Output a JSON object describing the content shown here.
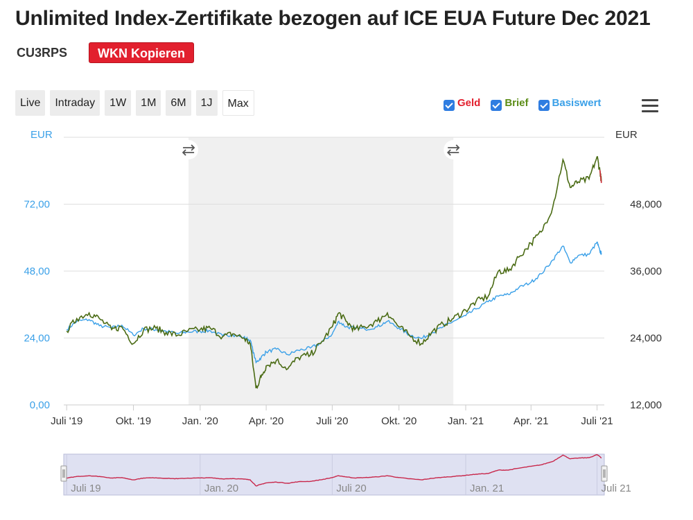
{
  "header": {
    "title": "Unlimited Index-Zertifikate bezogen auf ICE EUA Future Dec 2021",
    "symbol": "CU3RPS",
    "copy_button": "WKN Kopieren"
  },
  "ranges": [
    "Live",
    "Intraday",
    "1W",
    "1M",
    "6M",
    "1J",
    "Max"
  ],
  "active_range": "Max",
  "legend": [
    {
      "label": "Geld",
      "color": "#e2202e",
      "checked": true
    },
    {
      "label": "Brief",
      "color": "#5b8c16",
      "checked": true
    },
    {
      "label": "Basiswert",
      "color": "#3aa0e8",
      "checked": true
    }
  ],
  "colors": {
    "geld": "#d22a3a",
    "brief": "#4a6b14",
    "basiswert": "#3aa0e8",
    "navigator": "#c8264a",
    "shade": "#f0f0f0"
  },
  "icons": {
    "swap": "swap-arrows-icon",
    "menu": "hamburger-menu-icon"
  },
  "chart_data": {
    "type": "line",
    "x_tick_labels": [
      "Juli '19",
      "Okt. '19",
      "Jan. '20",
      "Apr. '20",
      "Juli '20",
      "Okt. '20",
      "Jan. '21",
      "Apr. '21",
      "Juli '21"
    ],
    "left_axis": {
      "label": "EUR",
      "ticks": [
        "0,00",
        "24,00",
        "48,00",
        "72,00"
      ],
      "range": [
        0,
        96
      ]
    },
    "right_axis": {
      "label": "EUR",
      "ticks": [
        "12,000",
        "24,000",
        "36,000",
        "48,000"
      ],
      "range": [
        12000,
        60000
      ]
    },
    "shaded_period": [
      "2019-12-16",
      "2020-12-15"
    ],
    "series": [
      {
        "name": "Brief",
        "axis": "left",
        "points": [
          [
            "2019-07-01",
            26.5
          ],
          [
            "2019-07-15",
            31
          ],
          [
            "2019-08-01",
            33
          ],
          [
            "2019-08-15",
            31
          ],
          [
            "2019-09-01",
            27
          ],
          [
            "2019-09-15",
            28
          ],
          [
            "2019-10-01",
            22
          ],
          [
            "2019-10-15",
            27
          ],
          [
            "2019-11-01",
            27.5
          ],
          [
            "2019-11-15",
            26
          ],
          [
            "2019-12-01",
            25
          ],
          [
            "2019-12-15",
            26.5
          ],
          [
            "2020-01-01",
            27
          ],
          [
            "2020-01-15",
            27.5
          ],
          [
            "2020-02-01",
            24.5
          ],
          [
            "2020-02-15",
            25.5
          ],
          [
            "2020-03-01",
            24
          ],
          [
            "2020-03-10",
            22
          ],
          [
            "2020-03-18",
            6
          ],
          [
            "2020-03-25",
            10
          ],
          [
            "2020-04-01",
            14
          ],
          [
            "2020-04-15",
            16
          ],
          [
            "2020-05-01",
            13
          ],
          [
            "2020-05-15",
            17
          ],
          [
            "2020-06-01",
            18
          ],
          [
            "2020-06-15",
            22
          ],
          [
            "2020-07-01",
            28
          ],
          [
            "2020-07-10",
            33
          ],
          [
            "2020-07-20",
            30
          ],
          [
            "2020-08-01",
            27
          ],
          [
            "2020-08-15",
            28
          ],
          [
            "2020-09-01",
            30
          ],
          [
            "2020-09-15",
            33
          ],
          [
            "2020-10-01",
            28
          ],
          [
            "2020-10-15",
            25
          ],
          [
            "2020-11-01",
            22
          ],
          [
            "2020-11-15",
            26
          ],
          [
            "2020-12-01",
            29
          ],
          [
            "2020-12-15",
            31
          ],
          [
            "2021-01-01",
            34
          ],
          [
            "2021-01-15",
            37
          ],
          [
            "2021-02-01",
            39
          ],
          [
            "2021-02-15",
            48
          ],
          [
            "2021-03-01",
            48
          ],
          [
            "2021-03-15",
            53
          ],
          [
            "2021-04-01",
            58
          ],
          [
            "2021-04-15",
            62
          ],
          [
            "2021-05-01",
            71
          ],
          [
            "2021-05-15",
            88
          ],
          [
            "2021-05-25",
            78
          ],
          [
            "2021-06-05",
            80
          ],
          [
            "2021-06-20",
            81
          ],
          [
            "2021-07-01",
            89
          ],
          [
            "2021-07-05",
            84
          ],
          [
            "2021-07-07",
            80
          ]
        ]
      },
      {
        "name": "Geld",
        "axis": "left",
        "points": [
          [
            "2021-07-05",
            84.2
          ],
          [
            "2021-07-07",
            79.6
          ]
        ]
      },
      {
        "name": "Basiswert",
        "axis": "right",
        "points": [
          [
            "2019-07-01",
            25500
          ],
          [
            "2019-07-15",
            27000
          ],
          [
            "2019-08-01",
            27300
          ],
          [
            "2019-08-15",
            26200
          ],
          [
            "2019-09-01",
            25800
          ],
          [
            "2019-09-15",
            26300
          ],
          [
            "2019-10-01",
            24500
          ],
          [
            "2019-10-15",
            25700
          ],
          [
            "2019-11-01",
            25500
          ],
          [
            "2019-11-15",
            25200
          ],
          [
            "2019-12-01",
            24800
          ],
          [
            "2019-12-15",
            25100
          ],
          [
            "2020-01-01",
            25200
          ],
          [
            "2020-01-15",
            25300
          ],
          [
            "2020-02-01",
            24400
          ],
          [
            "2020-02-15",
            24600
          ],
          [
            "2020-03-01",
            24100
          ],
          [
            "2020-03-10",
            23600
          ],
          [
            "2020-03-18",
            19600
          ],
          [
            "2020-03-25",
            20500
          ],
          [
            "2020-04-01",
            21500
          ],
          [
            "2020-04-15",
            22000
          ],
          [
            "2020-05-01",
            21000
          ],
          [
            "2020-05-15",
            21800
          ],
          [
            "2020-06-01",
            22200
          ],
          [
            "2020-06-15",
            23100
          ],
          [
            "2020-07-01",
            24700
          ],
          [
            "2020-07-10",
            27000
          ],
          [
            "2020-07-20",
            26000
          ],
          [
            "2020-08-01",
            25800
          ],
          [
            "2020-08-15",
            25600
          ],
          [
            "2020-09-01",
            26000
          ],
          [
            "2020-09-15",
            27000
          ],
          [
            "2020-10-01",
            25800
          ],
          [
            "2020-10-15",
            24600
          ],
          [
            "2020-11-01",
            23900
          ],
          [
            "2020-11-15",
            24900
          ],
          [
            "2020-12-01",
            26000
          ],
          [
            "2020-12-15",
            27000
          ],
          [
            "2021-01-01",
            28000
          ],
          [
            "2021-01-15",
            29200
          ],
          [
            "2021-02-01",
            30500
          ],
          [
            "2021-02-15",
            31500
          ],
          [
            "2021-03-01",
            31800
          ],
          [
            "2021-03-15",
            33000
          ],
          [
            "2021-04-01",
            34000
          ],
          [
            "2021-04-15",
            35500
          ],
          [
            "2021-05-01",
            38000
          ],
          [
            "2021-05-15",
            40500
          ],
          [
            "2021-05-25",
            37500
          ],
          [
            "2021-06-05",
            38800
          ],
          [
            "2021-06-20",
            39000
          ],
          [
            "2021-07-01",
            41200
          ],
          [
            "2021-07-05",
            39500
          ],
          [
            "2021-07-07",
            39200
          ]
        ]
      }
    ],
    "navigator": {
      "labels": [
        "Juli 19",
        "Jan. 20",
        "Juli 20",
        "Jan. 21",
        "Juli 21"
      ]
    }
  }
}
